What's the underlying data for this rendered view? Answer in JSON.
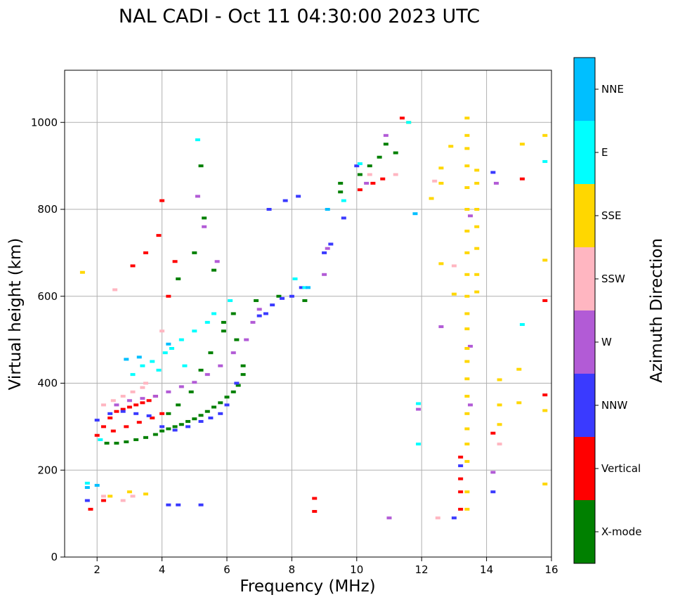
{
  "chart_data": {
    "type": "scatter",
    "title": "NAL CADI - Oct 11 04:30:00 2023 UTC",
    "xlabel": "Frequency (MHz)",
    "ylabel": "Virtual height (km)",
    "xlim": [
      1,
      16
    ],
    "ylim": [
      0,
      1120
    ],
    "xticks": [
      2,
      4,
      6,
      8,
      10,
      12,
      14,
      16
    ],
    "yticks": [
      0,
      200,
      400,
      600,
      800,
      1000
    ],
    "grid": true,
    "colorbar": {
      "label": "Azimuth Direction",
      "categories": [
        "X-mode",
        "Vertical",
        "NNW",
        "W",
        "SSW",
        "SSE",
        "E",
        "NNE"
      ],
      "colors": [
        "#008000",
        "#ff0000",
        "#3a3aff",
        "#b25bd6",
        "#ffb6c1",
        "#ffd700",
        "#00ffff",
        "#00bfff"
      ]
    },
    "series": [
      {
        "name": "X-mode",
        "points": [
          [
            2.3,
            262
          ],
          [
            2.6,
            262
          ],
          [
            2.9,
            265
          ],
          [
            3.2,
            270
          ],
          [
            3.5,
            275
          ],
          [
            3.8,
            282
          ],
          [
            4.0,
            290
          ],
          [
            4.2,
            295
          ],
          [
            4.4,
            300
          ],
          [
            4.6,
            305
          ],
          [
            4.8,
            312
          ],
          [
            5.0,
            318
          ],
          [
            5.2,
            326
          ],
          [
            5.4,
            335
          ],
          [
            5.6,
            345
          ],
          [
            5.8,
            355
          ],
          [
            6.0,
            368
          ],
          [
            6.2,
            380
          ],
          [
            6.35,
            395
          ],
          [
            6.5,
            420
          ],
          [
            6.5,
            440
          ],
          [
            4.2,
            330
          ],
          [
            4.5,
            350
          ],
          [
            4.9,
            380
          ],
          [
            5.2,
            430
          ],
          [
            5.5,
            470
          ],
          [
            5.9,
            520
          ],
          [
            6.2,
            560
          ],
          [
            6.9,
            590
          ],
          [
            7.6,
            600
          ],
          [
            8.4,
            590
          ],
          [
            9.5,
            860
          ],
          [
            9.5,
            840
          ],
          [
            10.1,
            880
          ],
          [
            10.4,
            900
          ],
          [
            10.7,
            920
          ],
          [
            10.9,
            950
          ],
          [
            11.2,
            930
          ],
          [
            4.5,
            640
          ],
          [
            5.0,
            700
          ],
          [
            5.3,
            780
          ],
          [
            5.6,
            660
          ],
          [
            5.9,
            540
          ],
          [
            6.3,
            500
          ],
          [
            5.2,
            900
          ]
        ]
      },
      {
        "name": "Vertical",
        "points": [
          [
            2.0,
            280
          ],
          [
            2.2,
            300
          ],
          [
            2.4,
            320
          ],
          [
            2.6,
            335
          ],
          [
            2.8,
            340
          ],
          [
            3.0,
            345
          ],
          [
            3.2,
            350
          ],
          [
            3.4,
            355
          ],
          [
            3.6,
            360
          ],
          [
            3.8,
            370
          ],
          [
            2.5,
            290
          ],
          [
            2.9,
            300
          ],
          [
            3.3,
            310
          ],
          [
            3.7,
            320
          ],
          [
            4.0,
            330
          ],
          [
            1.8,
            110
          ],
          [
            2.2,
            130
          ],
          [
            3.1,
            670
          ],
          [
            3.5,
            700
          ],
          [
            3.9,
            740
          ],
          [
            4.0,
            820
          ],
          [
            4.4,
            680
          ],
          [
            4.2,
            600
          ],
          [
            10.1,
            845
          ],
          [
            10.5,
            860
          ],
          [
            10.8,
            870
          ],
          [
            11.4,
            1010
          ],
          [
            13.2,
            110
          ],
          [
            13.2,
            150
          ],
          [
            13.2,
            180
          ],
          [
            13.2,
            230
          ],
          [
            8.7,
            135
          ],
          [
            8.7,
            105
          ],
          [
            14.2,
            285
          ],
          [
            15.1,
            870
          ],
          [
            15.8,
            590
          ],
          [
            15.8,
            373
          ]
        ]
      },
      {
        "name": "NNW",
        "points": [
          [
            2.0,
            315
          ],
          [
            2.4,
            330
          ],
          [
            2.8,
            335
          ],
          [
            3.2,
            330
          ],
          [
            3.6,
            325
          ],
          [
            4.0,
            300
          ],
          [
            4.4,
            292
          ],
          [
            4.8,
            300
          ],
          [
            5.2,
            312
          ],
          [
            5.5,
            320
          ],
          [
            5.8,
            330
          ],
          [
            6.0,
            350
          ],
          [
            6.3,
            400
          ],
          [
            7.0,
            555
          ],
          [
            7.2,
            560
          ],
          [
            7.4,
            580
          ],
          [
            7.7,
            595
          ],
          [
            8.0,
            600
          ],
          [
            8.3,
            620
          ],
          [
            7.3,
            800
          ],
          [
            7.8,
            820
          ],
          [
            8.2,
            830
          ],
          [
            9.0,
            700
          ],
          [
            9.2,
            720
          ],
          [
            9.6,
            780
          ],
          [
            10.0,
            900
          ],
          [
            4.2,
            120
          ],
          [
            4.5,
            120
          ],
          [
            5.2,
            120
          ],
          [
            13.0,
            90
          ],
          [
            14.2,
            885
          ],
          [
            14.2,
            150
          ],
          [
            1.7,
            130
          ],
          [
            13.2,
            210
          ]
        ]
      },
      {
        "name": "W",
        "points": [
          [
            2.6,
            350
          ],
          [
            3.0,
            360
          ],
          [
            3.4,
            365
          ],
          [
            3.8,
            370
          ],
          [
            4.2,
            380
          ],
          [
            4.6,
            392
          ],
          [
            5.0,
            402
          ],
          [
            5.4,
            420
          ],
          [
            5.8,
            440
          ],
          [
            6.2,
            470
          ],
          [
            6.6,
            500
          ],
          [
            6.8,
            540
          ],
          [
            7.0,
            570
          ],
          [
            5.1,
            830
          ],
          [
            5.3,
            760
          ],
          [
            5.7,
            680
          ],
          [
            9.0,
            650
          ],
          [
            9.1,
            710
          ],
          [
            10.3,
            860
          ],
          [
            10.9,
            970
          ],
          [
            12.6,
            530
          ],
          [
            13.5,
            350
          ],
          [
            13.5,
            485
          ],
          [
            13.5,
            785
          ],
          [
            14.3,
            860
          ],
          [
            14.2,
            195
          ],
          [
            11.9,
            340
          ],
          [
            11.0,
            90
          ]
        ]
      },
      {
        "name": "SSW",
        "points": [
          [
            2.2,
            350
          ],
          [
            2.5,
            360
          ],
          [
            2.8,
            370
          ],
          [
            3.1,
            380
          ],
          [
            3.4,
            390
          ],
          [
            2.8,
            130
          ],
          [
            3.1,
            140
          ],
          [
            2.2,
            140
          ],
          [
            3.5,
            400
          ],
          [
            4.0,
            520
          ],
          [
            13.0,
            670
          ],
          [
            14.4,
            260
          ],
          [
            12.5,
            90
          ],
          [
            12.4,
            865
          ],
          [
            2.55,
            615
          ],
          [
            10.4,
            880
          ],
          [
            11.2,
            880
          ]
        ]
      },
      {
        "name": "SSE",
        "points": [
          [
            1.55,
            655
          ],
          [
            3.5,
            145
          ],
          [
            3.0,
            150
          ],
          [
            2.4,
            140
          ],
          [
            12.3,
            825
          ],
          [
            12.6,
            895
          ],
          [
            12.6,
            860
          ],
          [
            12.9,
            945
          ],
          [
            12.6,
            675
          ],
          [
            13.0,
            605
          ],
          [
            13.4,
            110
          ],
          [
            13.4,
            150
          ],
          [
            13.4,
            220
          ],
          [
            13.4,
            260
          ],
          [
            13.4,
            295
          ],
          [
            13.4,
            330
          ],
          [
            13.4,
            370
          ],
          [
            13.4,
            410
          ],
          [
            13.4,
            450
          ],
          [
            13.4,
            480
          ],
          [
            13.4,
            525
          ],
          [
            13.4,
            560
          ],
          [
            13.4,
            600
          ],
          [
            13.4,
            650
          ],
          [
            13.4,
            700
          ],
          [
            13.4,
            750
          ],
          [
            13.4,
            800
          ],
          [
            13.4,
            850
          ],
          [
            13.4,
            900
          ],
          [
            13.4,
            940
          ],
          [
            13.4,
            970
          ],
          [
            13.4,
            1010
          ],
          [
            13.7,
            610
          ],
          [
            13.7,
            650
          ],
          [
            13.7,
            710
          ],
          [
            13.7,
            760
          ],
          [
            13.7,
            800
          ],
          [
            13.7,
            860
          ],
          [
            13.7,
            890
          ],
          [
            14.4,
            408
          ],
          [
            14.4,
            350
          ],
          [
            14.4,
            305
          ],
          [
            15.0,
            432
          ],
          [
            15.0,
            355
          ],
          [
            15.1,
            950
          ],
          [
            15.8,
            970
          ],
          [
            15.8,
            683
          ],
          [
            15.8,
            337
          ],
          [
            15.8,
            168
          ],
          [
            11.6,
            1000
          ]
        ]
      },
      {
        "name": "E",
        "points": [
          [
            3.1,
            420
          ],
          [
            3.4,
            440
          ],
          [
            3.7,
            450
          ],
          [
            4.1,
            470
          ],
          [
            4.3,
            480
          ],
          [
            4.6,
            500
          ],
          [
            5.0,
            520
          ],
          [
            5.4,
            540
          ],
          [
            5.6,
            560
          ],
          [
            3.9,
            430
          ],
          [
            4.7,
            440
          ],
          [
            5.1,
            960
          ],
          [
            8.1,
            640
          ],
          [
            8.4,
            620
          ],
          [
            9.6,
            820
          ],
          [
            10.1,
            905
          ],
          [
            11.6,
            1000
          ],
          [
            11.9,
            260
          ],
          [
            11.9,
            353
          ],
          [
            15.1,
            535
          ],
          [
            15.8,
            910
          ],
          [
            1.7,
            170
          ],
          [
            2.1,
            270
          ],
          [
            6.1,
            590
          ]
        ]
      },
      {
        "name": "NNE",
        "points": [
          [
            1.7,
            160
          ],
          [
            2.0,
            165
          ],
          [
            2.9,
            455
          ],
          [
            3.3,
            460
          ],
          [
            4.2,
            490
          ],
          [
            8.5,
            620
          ],
          [
            9.1,
            800
          ],
          [
            11.8,
            790
          ]
        ]
      }
    ]
  }
}
